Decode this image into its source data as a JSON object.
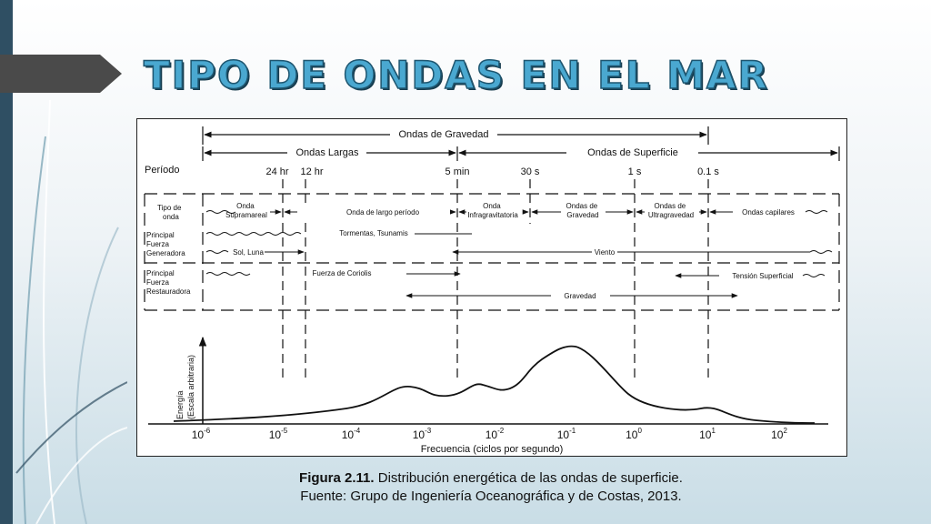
{
  "slide": {
    "title": "TIPO DE ONDAS EN EL MAR",
    "colors": {
      "title_fill": "#4aa8d0",
      "title_outline": "#1e5670",
      "side_bar": "#2f4f63",
      "arrow_tab": "#4a4a4a"
    }
  },
  "figure": {
    "top_arrows": {
      "gravedad": "Ondas de Gravedad",
      "largas": "Ondas Largas",
      "superficie": "Ondas de Superficie"
    },
    "periodo_label": "Período",
    "periods": [
      "24 hr",
      "12 hr",
      "5 min",
      "30 s",
      "1 s",
      "0.1 s"
    ],
    "row_labels": {
      "tipo": [
        "Tipo de",
        "onda"
      ],
      "generadora": [
        "Principal",
        "Fuerza",
        "Generadora"
      ],
      "restauradora": [
        "Principal",
        "Fuerza",
        "Restauradora"
      ]
    },
    "wave_types": {
      "supramareal": [
        "Onda",
        "Supramareal"
      ],
      "largo_periodo": "Onda de largo período",
      "infragravitatoria": [
        "Onda",
        "Infragravitatoria"
      ],
      "gravedad": [
        "Ondas de",
        "Gravedad"
      ],
      "ultragravedad": [
        "Ondas de",
        "Ultragravedad"
      ],
      "capilares": "Ondas capilares"
    },
    "forces": {
      "tormentas": "Tormentas, Tsunamis",
      "sol_luna": "Sol, Luna",
      "viento": "Viento",
      "coriolis": "Fuerza de Coriolis",
      "tension": "Tensión Superficial",
      "gravedad": "Gravedad"
    },
    "y_axis": [
      "Energía",
      "(Escala arbitraria)"
    ],
    "x_label": "Frecuencia (ciclos por segundo)",
    "x_ticks": [
      {
        "base": "10",
        "exp": "-6"
      },
      {
        "base": "10",
        "exp": "-5"
      },
      {
        "base": "10",
        "exp": "-4"
      },
      {
        "base": "10",
        "exp": "-3"
      },
      {
        "base": "10",
        "exp": "-2"
      },
      {
        "base": "10",
        "exp": "-1"
      },
      {
        "base": "10",
        "exp": "0"
      },
      {
        "base": "10",
        "exp": "1"
      },
      {
        "base": "10",
        "exp": "2"
      }
    ]
  },
  "caption": {
    "figure_label": "Figura 2.11.",
    "line1": " Distribución energética de las ondas de superficie.",
    "line2": "Fuente: Grupo de Ingeniería Oceanográfica y de Costas, 2013."
  }
}
